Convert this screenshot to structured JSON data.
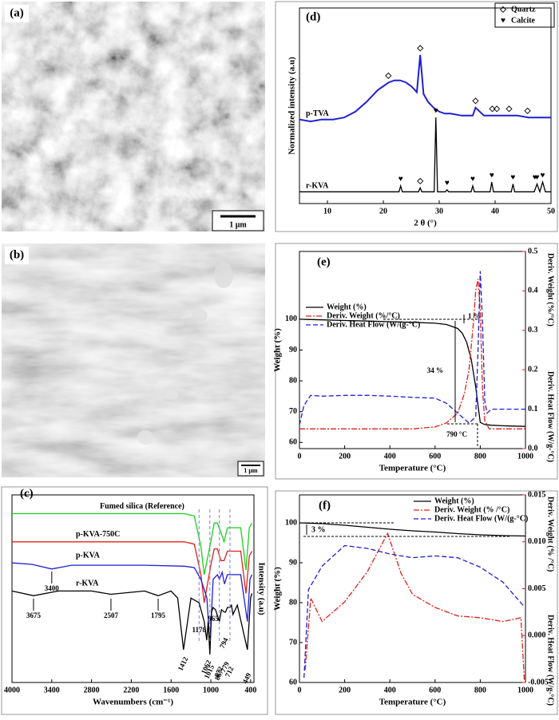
{
  "panels": {
    "a": {
      "label": "(a)",
      "scale_bar": "1 μm"
    },
    "b": {
      "label": "(b)",
      "scale_bar": "1 μm"
    }
  },
  "chart_data": [
    {
      "type": "line",
      "panel_label": "(d)",
      "xlabel": "2 θ (°)",
      "ylabel": "Normalized intensity (a.u)",
      "xlim": [
        5,
        50
      ],
      "ylim": [
        0,
        1
      ],
      "xticks": [
        10,
        20,
        30,
        40,
        50
      ],
      "legend": "upper right",
      "series": [
        {
          "name": "p-TVA",
          "color": "#1f1fd6",
          "dash": "solid",
          "x": [
            5,
            7,
            9,
            11,
            13,
            15,
            17,
            18,
            19,
            20,
            21,
            22,
            23,
            24,
            25,
            26,
            26.6,
            27.2,
            28,
            29,
            30,
            31,
            32,
            34,
            36,
            36.5,
            38,
            40,
            42,
            44,
            46,
            48,
            50
          ],
          "values": [
            0.43,
            0.42,
            0.43,
            0.43,
            0.44,
            0.47,
            0.52,
            0.55,
            0.58,
            0.6,
            0.62,
            0.63,
            0.63,
            0.62,
            0.6,
            0.57,
            0.76,
            0.56,
            0.52,
            0.49,
            0.47,
            0.46,
            0.46,
            0.45,
            0.45,
            0.49,
            0.45,
            0.45,
            0.45,
            0.45,
            0.44,
            0.44,
            0.44
          ]
        },
        {
          "name": "r-KVA",
          "color": "#000000",
          "dash": "solid",
          "x": [
            5,
            22.8,
            23.1,
            23.4,
            26.3,
            26.6,
            26.9,
            29.1,
            29.4,
            29.7,
            31.1,
            31.4,
            31.7,
            35.7,
            36,
            36.3,
            39.1,
            39.4,
            39.7,
            42.9,
            43.2,
            43.5,
            47,
            47.5,
            48,
            48.5,
            49,
            50
          ],
          "values": [
            0.06,
            0.06,
            0.09,
            0.06,
            0.06,
            0.08,
            0.06,
            0.06,
            0.44,
            0.06,
            0.06,
            0.07,
            0.06,
            0.06,
            0.09,
            0.06,
            0.06,
            0.11,
            0.06,
            0.06,
            0.1,
            0.06,
            0.06,
            0.1,
            0.06,
            0.11,
            0.06,
            0.06
          ]
        }
      ],
      "phases": [
        {
          "name": "Quartz",
          "symbol": "◇",
          "peaks": [
            [
              20.9,
              26.6,
              36.5,
              39.5,
              40.3,
              42.5,
              45.8
            ],
            [
              26.6
            ]
          ]
        },
        {
          "name": "Calcite",
          "symbol": "♥",
          "peaks": [
            [],
            [
              23.1,
              29.4,
              31.4,
              36,
              39.4,
              43.2,
              47.1,
              47.5,
              48.5
            ]
          ]
        }
      ]
    },
    {
      "type": "line",
      "panel_label": "(e)",
      "xlabel": "Temperature (°C)",
      "ylabel": "Weight (%)",
      "y2label": [
        "Deriv. Weight (%/°C)",
        "Deriv. Heat Flow (W/g-°C)"
      ],
      "xlim": [
        0,
        1000
      ],
      "ylim": [
        58,
        122
      ],
      "y2lim": [
        0,
        0.5
      ],
      "xticks": [
        0,
        200,
        400,
        600,
        800,
        1000
      ],
      "yticks": [
        60,
        70,
        80,
        90,
        100
      ],
      "y2ticks": [
        {
          "value": 0,
          "label": "0.0"
        },
        0.1,
        0.2,
        0.3,
        0.4,
        0.5
      ],
      "legend": "upper left",
      "annotations": [
        "1 %",
        "34 %",
        "790 °C"
      ],
      "series": [
        {
          "name": "Weight (%)",
          "color": "#000000",
          "dash": "solid",
          "x": [
            0,
            100,
            200,
            300,
            400,
            500,
            600,
            650,
            700,
            720,
            740,
            760,
            780,
            790,
            800,
            820,
            850,
            900,
            1000
          ],
          "values": [
            100,
            99.8,
            99.6,
            99.4,
            99.2,
            99,
            98.7,
            98.3,
            97,
            95.5,
            92.5,
            87,
            78,
            72,
            66.5,
            65.8,
            65.6,
            65.4,
            65.2
          ]
        },
        {
          "name": "Deriv. Weight (%/°C)",
          "color": "#e0201b",
          "dash": "dashdot",
          "axis": "y2",
          "x": [
            0,
            20,
            100,
            300,
            500,
            600,
            650,
            700,
            730,
            750,
            770,
            780,
            790,
            800,
            810,
            820,
            840,
            900,
            1000
          ],
          "values": [
            0.05,
            0.05,
            0.05,
            0.05,
            0.05,
            0.055,
            0.065,
            0.09,
            0.14,
            0.2,
            0.32,
            0.4,
            0.43,
            0.35,
            0.15,
            0.07,
            0.05,
            0.05,
            0.05
          ]
        },
        {
          "name": "Deriv. Heat Flow (W/(g-°C)",
          "color": "#1f1fd6",
          "dash": "dashed",
          "axis": "y2",
          "x": [
            0,
            20,
            50,
            100,
            200,
            300,
            400,
            500,
            600,
            650,
            700,
            750,
            780,
            790,
            800,
            810,
            820,
            830,
            850,
            900,
            1000
          ],
          "values": [
            0.06,
            0.11,
            0.135,
            0.133,
            0.135,
            0.135,
            0.133,
            0.13,
            0.128,
            0.115,
            0.09,
            0.065,
            0.08,
            0.25,
            0.45,
            0.32,
            0.12,
            0.09,
            0.1,
            0.1,
            0.1
          ]
        }
      ]
    },
    {
      "type": "line",
      "panel_label": "(c)",
      "xlabel": "Wavenumbers (cm⁻¹)",
      "ylabel": "Intensity (a.u)",
      "xlim": [
        4000,
        350
      ],
      "ylim": [
        0,
        4
      ],
      "xticks": [
        4000,
        3400,
        2800,
        2200,
        1600,
        1000,
        400
      ],
      "peak_labels": [
        3400,
        3675,
        2507,
        1795,
        1412,
        1178,
        1062,
        1015,
        965,
        872,
        794,
        779,
        712,
        867,
        449
      ],
      "series": [
        {
          "name": "Fumed silica (Reference)",
          "color": "#19d119",
          "dash": "solid",
          "x": [
            4000,
            3000,
            2000,
            1400,
            1250,
            1150,
            1100,
            1000,
            950,
            900,
            850,
            800,
            750,
            650,
            550,
            470,
            420,
            380
          ],
          "values": [
            3.6,
            3.6,
            3.6,
            3.6,
            3.55,
            2.9,
            2.3,
            3.0,
            3.4,
            3.4,
            3.2,
            3.0,
            3.3,
            3.3,
            3.3,
            2.4,
            3.3,
            3.4
          ]
        },
        {
          "name": "p-KVA-750C",
          "color": "#e0201b",
          "dash": "solid",
          "x": [
            4000,
            3000,
            2000,
            1400,
            1250,
            1150,
            1100,
            1000,
            950,
            900,
            850,
            800,
            750,
            650,
            550,
            470,
            420,
            380
          ],
          "values": [
            3.0,
            3.0,
            3.0,
            3.0,
            2.95,
            2.3,
            1.7,
            2.5,
            2.85,
            2.85,
            2.6,
            2.6,
            2.8,
            2.8,
            2.8,
            1.9,
            2.7,
            2.8
          ]
        },
        {
          "name": "p-KVA",
          "color": "#1f1fd6",
          "dash": "solid",
          "x": [
            4000,
            3700,
            3400,
            3100,
            2000,
            1400,
            1250,
            1150,
            1060,
            1015,
            965,
            900,
            872,
            830,
            794,
            750,
            650,
            550,
            449,
            410,
            380
          ],
          "values": [
            2.55,
            2.52,
            2.42,
            2.5,
            2.5,
            2.48,
            2.45,
            2.2,
            1.8,
            0.8,
            2.2,
            2.3,
            2.2,
            2.35,
            2.1,
            2.3,
            2.3,
            2.3,
            1.3,
            2.2,
            2.3
          ]
        },
        {
          "name": "r-KVA",
          "color": "#000000",
          "dash": "solid",
          "x": [
            4000,
            3675,
            3300,
            2800,
            2507,
            2000,
            1795,
            1600,
            1500,
            1412,
            1300,
            1178,
            1100,
            1062,
            1040,
            1015,
            990,
            965,
            930,
            872,
            840,
            794,
            779,
            750,
            712,
            690,
            667,
            600,
            449,
            400,
            380
          ],
          "values": [
            1.95,
            1.85,
            1.95,
            1.95,
            1.88,
            1.95,
            1.85,
            1.95,
            1.8,
            0.7,
            1.8,
            1.7,
            1.3,
            0.9,
            1.3,
            0.6,
            1.5,
            1.6,
            1.55,
            1.3,
            1.55,
            1.5,
            1.5,
            1.6,
            1.6,
            1.65,
            1.45,
            1.65,
            0.7,
            1.8,
            1.9
          ]
        }
      ]
    },
    {
      "type": "line",
      "panel_label": "(f)",
      "xlabel": "Temperature (°C)",
      "ylabel": "Weight (%)",
      "y2label": [
        "Deriv. Weight (% /°C)",
        "Deriv. Heat Flow (W/g-°C)"
      ],
      "xlim": [
        0,
        1000
      ],
      "ylim": [
        60,
        107
      ],
      "y2lim": [
        -0.005,
        0.015
      ],
      "xticks": [
        0,
        200,
        400,
        600,
        800,
        1000
      ],
      "yticks": [
        60,
        70,
        80,
        90,
        100
      ],
      "y2ticks": [
        -0.005,
        {
          "value": 0,
          "label": "0.000"
        },
        0.005,
        {
          "value": 0.01,
          "label": "0.010"
        },
        0.015
      ],
      "legend": "upper right",
      "annotations": [
        "3 %"
      ],
      "series": [
        {
          "name": "Weight (%)",
          "color": "#000000",
          "dash": "solid",
          "x": [
            0,
            100,
            200,
            300,
            400,
            500,
            600,
            700,
            800,
            900,
            1000
          ],
          "values": [
            100,
            99.8,
            99.4,
            98.9,
            98.4,
            98,
            97.7,
            97.3,
            97,
            96.8,
            96.7
          ]
        },
        {
          "name": "Deriv. Weight (% /°C)",
          "color": "#e0201b",
          "dash": "dashdot",
          "axis": "y2",
          "x": [
            25,
            50,
            100,
            200,
            300,
            390,
            450,
            500,
            600,
            700,
            800,
            900,
            980,
            995
          ],
          "values": [
            -0.0037,
            0.004,
            0.0015,
            0.0036,
            0.0068,
            0.0109,
            0.0066,
            0.0044,
            0.003,
            0.0021,
            0.0019,
            0.0015,
            0.0019,
            -0.0048
          ]
        },
        {
          "name": "Deriv. Heat Flow (W/(g-°C)",
          "color": "#1f1fd6",
          "dash": "dashed",
          "axis": "y2",
          "x": [
            20,
            40,
            100,
            200,
            300,
            400,
            500,
            600,
            700,
            800,
            900,
            990
          ],
          "values": [
            -0.0045,
            0.0049,
            0.0074,
            0.0096,
            0.0093,
            0.0087,
            0.0083,
            0.0085,
            0.0083,
            0.0073,
            0.0057,
            0.0032
          ]
        }
      ]
    }
  ]
}
